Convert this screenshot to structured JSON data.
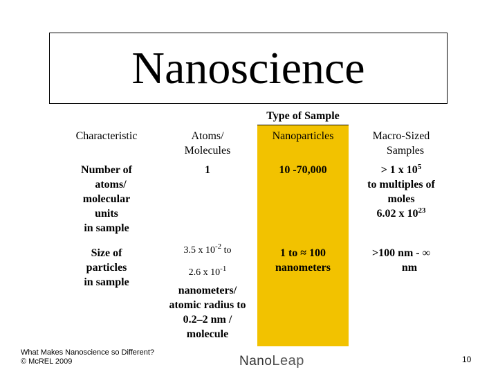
{
  "slide": {
    "title": "Nanoscience",
    "type_of_sample": "Type of Sample"
  },
  "table": {
    "headers": [
      "Characteristic",
      "Atoms/\nMolecules",
      "Nanoparticles",
      "Macro-Sized\n   Samples"
    ],
    "row1": {
      "characteristic": "Number of\n   atoms/\nmolecular\nunits\nin sample",
      "atoms": "1",
      "nano": "10 -70,000",
      "macro_line1_pre": "> 1 x 10",
      "macro_line1_sup": "5",
      "macro_line2": "to multiples of",
      "macro_line3": "moles",
      "macro_line4_pre": "6.02 x 10",
      "macro_line4_sup": "23"
    },
    "row2": {
      "characteristic": "Size of\nparticles\nin sample",
      "atoms_line1_pre": "3.5 x 10",
      "atoms_line1_sup": "-2",
      "atoms_line1_post": " to",
      "atoms_line2_pre": "2.6 x 10",
      "atoms_line2_sup": "-1",
      "atoms_rest": "nanometers/\natomic radius to\n0.2–2 nm /\nmolecule",
      "nano": "1 to ≈ 100\nnanometers",
      "macro": ">100 nm - ∞\n      nm"
    }
  },
  "footer": {
    "line1": "What Makes Nanoscience so Different?",
    "line2": "© McREL 2009",
    "logo_nano": "Nano",
    "logo_leap": "Leap",
    "page": "10"
  }
}
